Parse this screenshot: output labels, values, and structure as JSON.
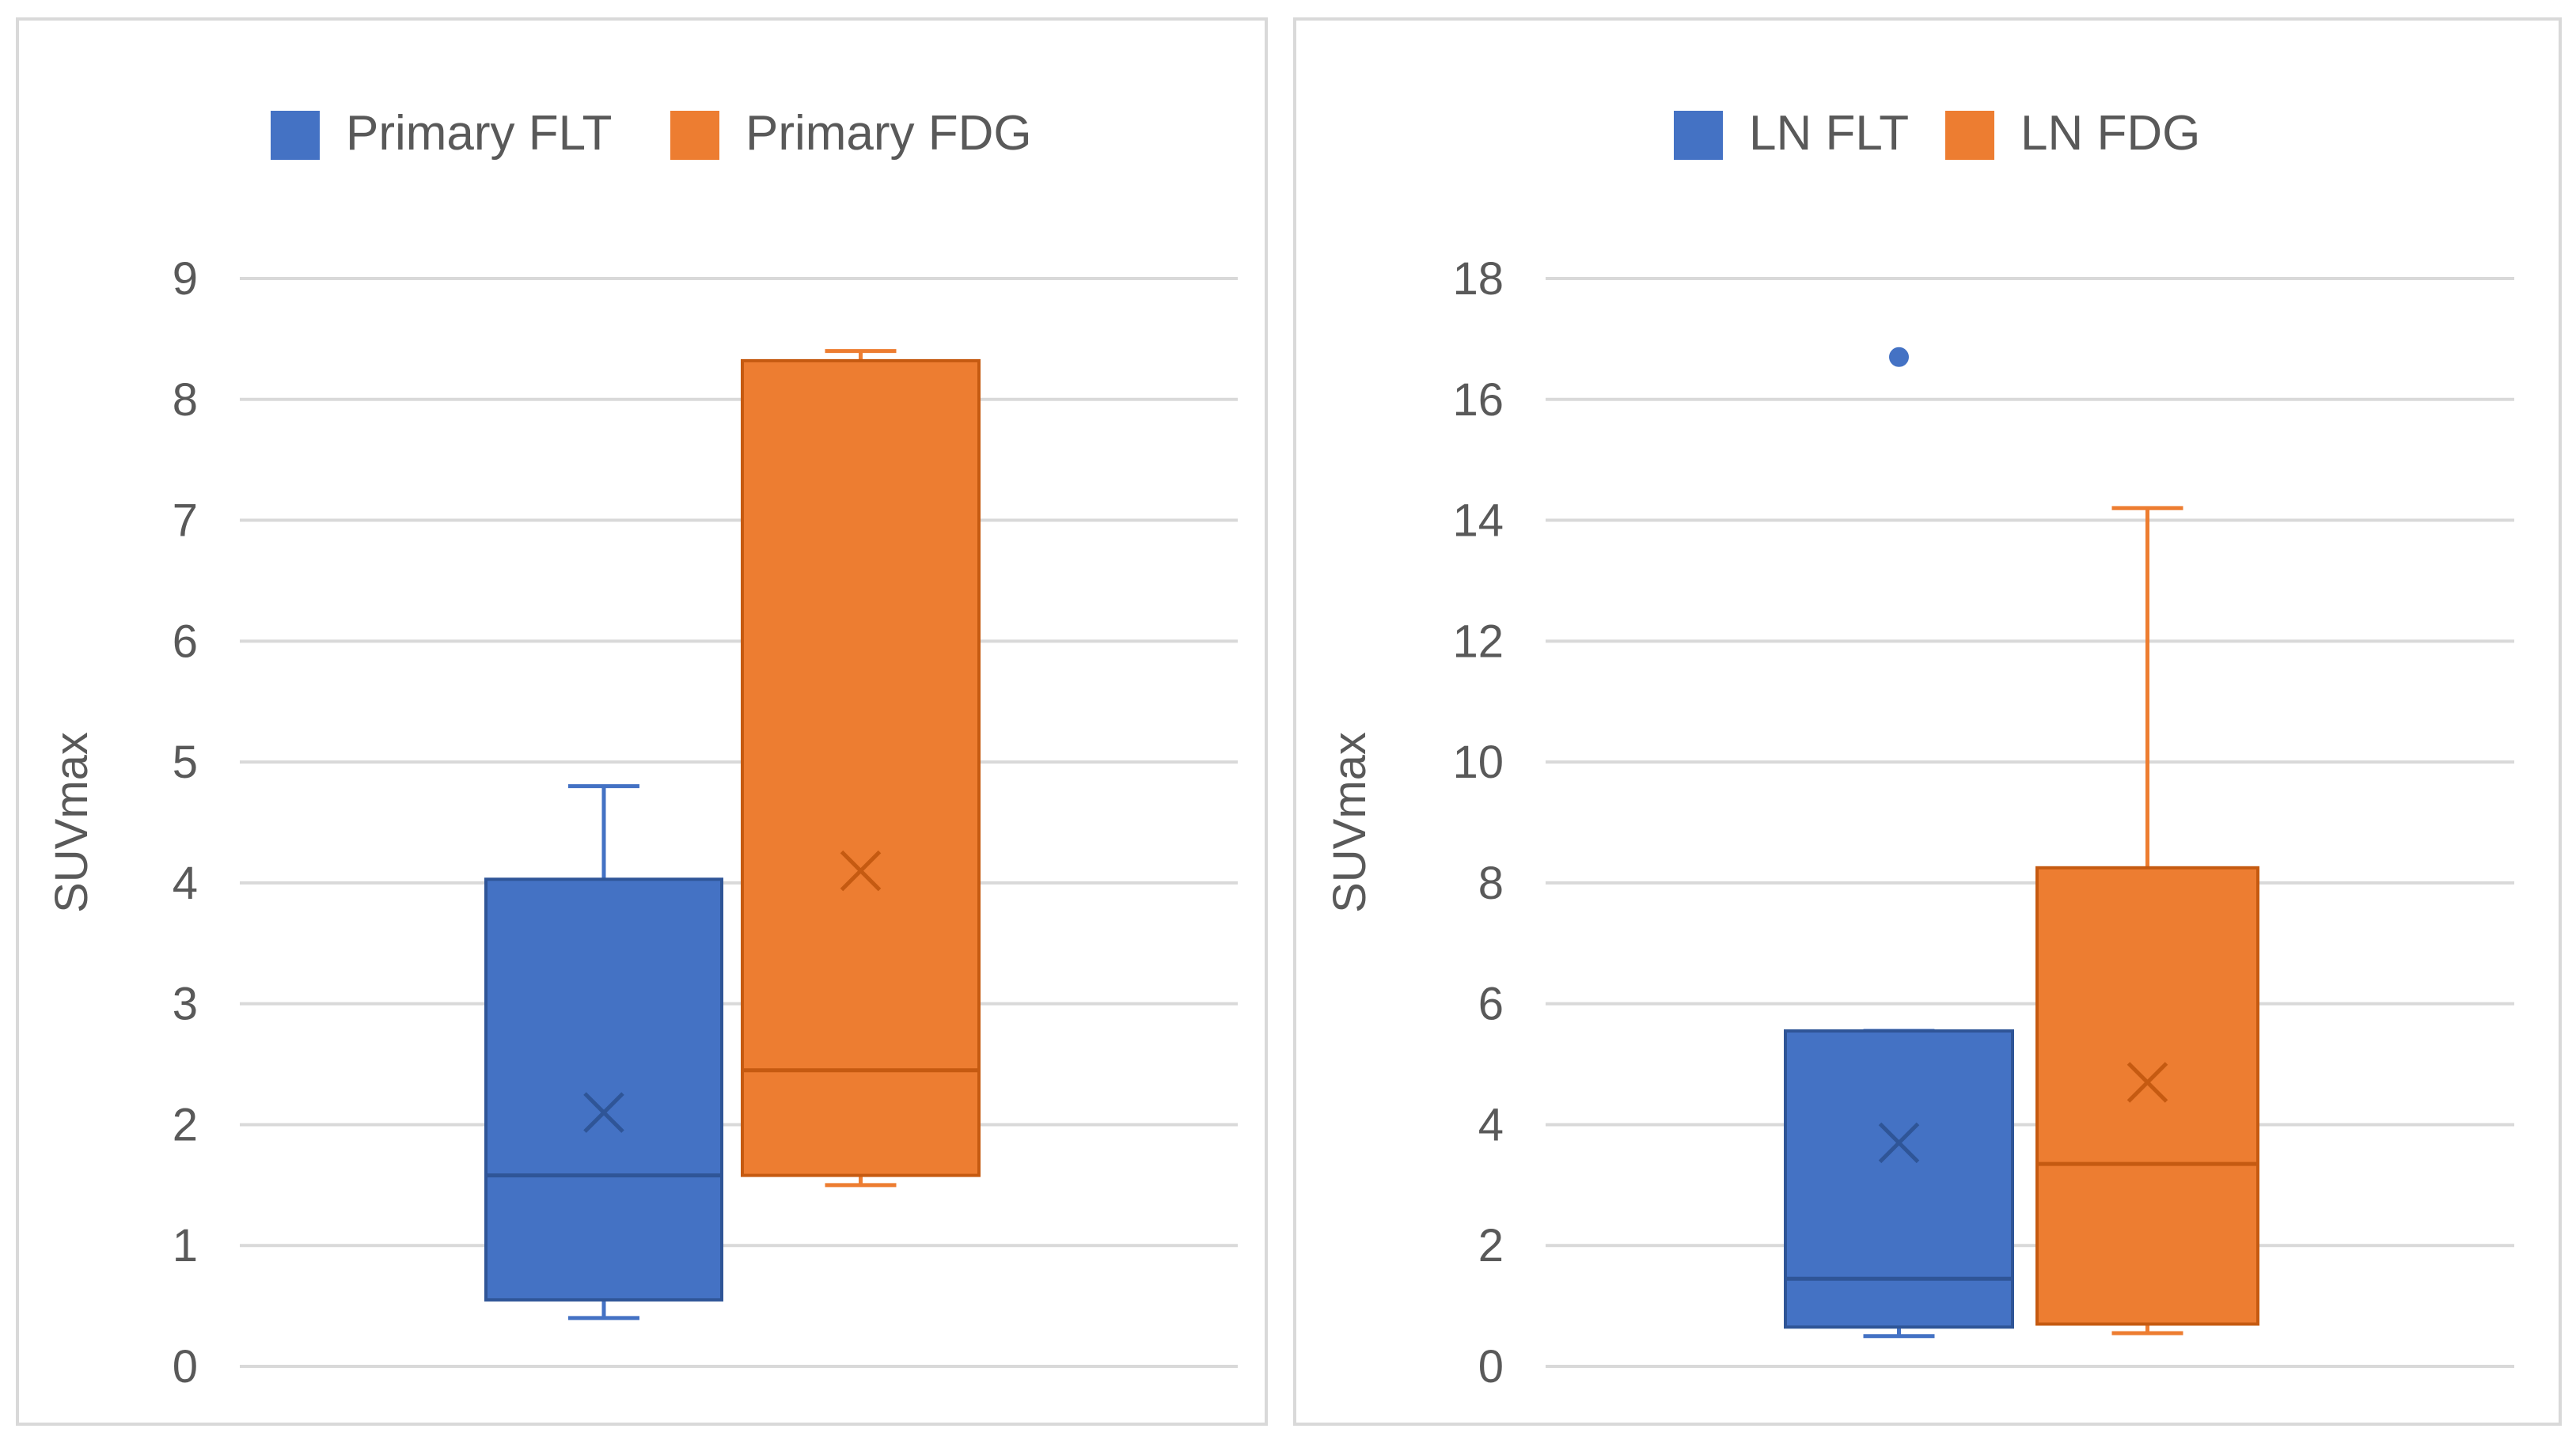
{
  "colors": {
    "blue": "#4472c4",
    "orange": "#ed7d31",
    "grid": "#d9d9d9",
    "text": "#595959",
    "border": "#d9d9d9"
  },
  "chart_data": [
    {
      "type": "box",
      "title": "",
      "xlabel": "",
      "ylabel": "SUVmax",
      "ylim": [
        0,
        9
      ],
      "yticks": [
        0,
        1,
        2,
        3,
        4,
        5,
        6,
        7,
        8,
        9
      ],
      "grid": true,
      "legend": "top",
      "series": [
        {
          "name": "Primary FLT",
          "color": "#4472c4",
          "min": 0.4,
          "q1": 0.55,
          "median": 1.58,
          "q3": 4.03,
          "max": 4.8,
          "mean": 2.1,
          "outliers": []
        },
        {
          "name": "Primary FDG",
          "color": "#ed7d31",
          "min": 1.5,
          "q1": 1.58,
          "median": 2.45,
          "q3": 8.32,
          "max": 8.4,
          "mean": 4.1,
          "outliers": []
        }
      ]
    },
    {
      "type": "box",
      "title": "",
      "xlabel": "",
      "ylabel": "SUVmax",
      "ylim": [
        0,
        18
      ],
      "yticks": [
        0,
        2,
        4,
        6,
        8,
        10,
        12,
        14,
        16,
        18
      ],
      "grid": true,
      "legend": "top",
      "series": [
        {
          "name": "LN FLT",
          "color": "#4472c4",
          "min": 0.5,
          "q1": 0.65,
          "median": 1.45,
          "q3": 5.55,
          "max": 5.55,
          "mean": 3.7,
          "outliers": [
            16.7
          ]
        },
        {
          "name": "LN FDG",
          "color": "#ed7d31",
          "min": 0.55,
          "q1": 0.7,
          "median": 3.35,
          "q3": 8.25,
          "max": 14.2,
          "mean": 4.7,
          "outliers": []
        }
      ]
    }
  ]
}
